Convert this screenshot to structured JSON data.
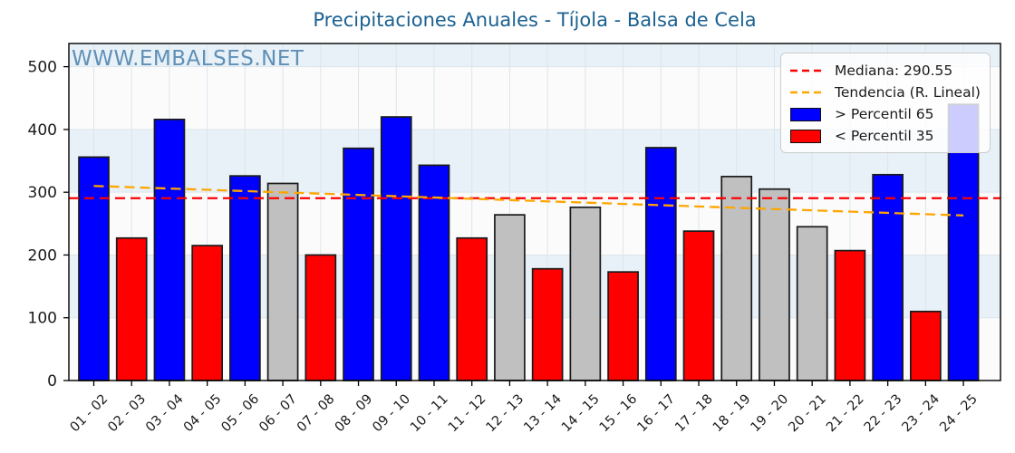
{
  "title": "Precipitaciones Anuales - Tíjola - Balsa de Cela",
  "watermark": "WWW.EMBALSES.NET",
  "legend": {
    "mediana_label": "Mediana: 290.55",
    "tendencia_label": "Tendencia (R. Lineal)",
    "p65_label": "> Percentil 65",
    "p35_label": "< Percentil 35"
  },
  "colors": {
    "bar_above_p65": "#0000fe",
    "bar_below_p35": "#fe0000",
    "bar_mid": "#c0c0c0",
    "bar_edge": "#1a1a1a",
    "mediana_line": "#ff0000",
    "trend_line": "#ffa500",
    "title_text": "#1b6190",
    "band_blue": "#e7f1f7",
    "band_white": "#fbfbfc",
    "grid": "#dce5eb",
    "spine": "#000000",
    "tick_text": "#1a1a1a"
  },
  "chart_data": {
    "type": "bar",
    "title": "Precipitaciones Anuales - Tíjola - Balsa de Cela",
    "xlabel": "",
    "ylabel": "",
    "categories": [
      "01 - 02",
      "02 - 03",
      "03 - 04",
      "04 - 05",
      "05 - 06",
      "06 - 07",
      "07 - 08",
      "08 - 09",
      "09 - 10",
      "10 - 11",
      "11 - 12",
      "12 - 13",
      "13 - 14",
      "14 - 15",
      "15 - 16",
      "16 - 17",
      "17 - 18",
      "18 - 19",
      "19 - 20",
      "20 - 21",
      "21 - 22",
      "22 - 23",
      "23 - 24",
      "24 - 25"
    ],
    "values": [
      356,
      227,
      416,
      215,
      326,
      314,
      200,
      370,
      420,
      343,
      227,
      264,
      178,
      276,
      173,
      371,
      238,
      325,
      305,
      245,
      207,
      328,
      110,
      440
    ],
    "bar_classes": [
      "above_p65",
      "below_p35",
      "above_p65",
      "below_p35",
      "above_p65",
      "mid",
      "below_p35",
      "above_p65",
      "above_p65",
      "above_p65",
      "below_p35",
      "mid",
      "below_p35",
      "mid",
      "below_p35",
      "above_p65",
      "below_p35",
      "mid",
      "mid",
      "mid",
      "below_p35",
      "above_p65",
      "below_p35",
      "above_p65"
    ],
    "median": 290.55,
    "trend_linear": {
      "start_value": 310,
      "end_value": 263
    },
    "ylim": [
      0,
      537
    ],
    "yticks": [
      0,
      100,
      200,
      300,
      400,
      500
    ],
    "grid": true,
    "legend_position": "upper right",
    "legend_entries": [
      "Mediana: 290.55",
      "Tendencia (R. Lineal)",
      "> Percentil 65",
      "< Percentil 35"
    ]
  }
}
